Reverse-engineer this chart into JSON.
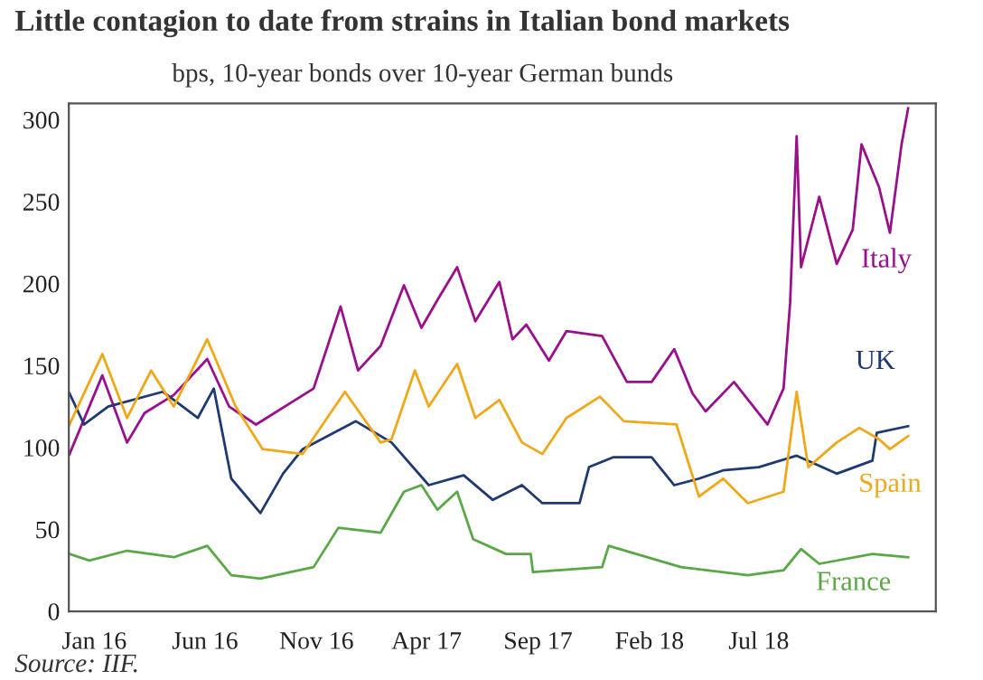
{
  "chart_data": {
    "type": "line",
    "title": "Little contagion to date from strains in Italian bond markets",
    "subtitle": "bps, 10-year bonds over 10-year German bunds",
    "annotations": [
      "Source: IIF."
    ],
    "xlim": [
      "2015-11-27",
      "2019-03-01"
    ],
    "ylim": [
      0,
      310
    ],
    "xticks": [
      {
        "value": "2016-01-01",
        "label": "Jan 16"
      },
      {
        "value": "2016-06-01",
        "label": "Jun 16"
      },
      {
        "value": "2016-11-01",
        "label": "Nov 16"
      },
      {
        "value": "2017-04-01",
        "label": "Apr 17"
      },
      {
        "value": "2017-09-01",
        "label": "Sep 17"
      },
      {
        "value": "2018-02-01",
        "label": "Feb 18"
      },
      {
        "value": "2018-07-01",
        "label": "Jul 18"
      }
    ],
    "yticks": [
      0,
      50,
      100,
      150,
      200,
      250,
      300
    ],
    "grid": false,
    "legend": false,
    "series": [
      {
        "name": "Italy",
        "color": "#990f8c",
        "x": [
          "2015-11-28",
          "2016-01-12",
          "2016-02-15",
          "2016-03-10",
          "2016-04-19",
          "2016-06-04",
          "2016-07-04",
          "2016-08-10",
          "2016-10-28",
          "2016-12-04",
          "2016-12-28",
          "2017-01-28",
          "2017-03-01",
          "2017-03-25",
          "2017-04-16",
          "2017-05-13",
          "2017-06-07",
          "2017-07-10",
          "2017-07-28",
          "2017-08-16",
          "2017-09-16",
          "2017-10-10",
          "2017-11-28",
          "2018-01-01",
          "2018-02-04",
          "2018-03-07",
          "2018-04-01",
          "2018-04-19",
          "2018-05-28",
          "2018-07-13",
          "2018-08-04",
          "2018-08-13",
          "2018-08-22",
          "2018-08-28",
          "2018-09-22",
          "2018-10-16",
          "2018-11-07",
          "2018-11-19",
          "2018-12-13",
          "2018-12-28",
          "2019-01-13",
          "2019-01-22"
        ],
        "values": [
          96,
          144,
          103,
          121,
          132,
          154,
          125,
          114,
          136,
          186,
          147,
          162,
          199,
          173,
          190,
          210,
          177,
          201,
          166,
          175,
          153,
          171,
          168,
          140,
          140,
          160,
          133,
          122,
          140,
          114,
          136,
          188,
          290,
          210,
          253,
          212,
          233,
          285,
          259,
          231,
          285,
          307
        ]
      },
      {
        "name": "UK",
        "color": "#1f3a73",
        "x": [
          "2015-11-28",
          "2015-12-18",
          "2016-01-20",
          "2016-04-04",
          "2016-05-22",
          "2016-06-13",
          "2016-07-07",
          "2016-08-16",
          "2016-09-16",
          "2016-10-13",
          "2016-12-25",
          "2017-02-12",
          "2017-04-04",
          "2017-05-22",
          "2017-07-01",
          "2017-08-10",
          "2017-09-07",
          "2017-10-28",
          "2017-11-10",
          "2017-12-13",
          "2018-02-04",
          "2018-03-07",
          "2018-04-10",
          "2018-05-13",
          "2018-07-01",
          "2018-08-22",
          "2018-10-16",
          "2018-12-04",
          "2018-12-10",
          "2019-01-22"
        ],
        "values": [
          133,
          114,
          125,
          134,
          118,
          136,
          81,
          60,
          84,
          99,
          116,
          103,
          77,
          83,
          68,
          77,
          66,
          66,
          88,
          94,
          94,
          77,
          81,
          86,
          88,
          95,
          84,
          92,
          109,
          113
        ]
      },
      {
        "name": "Spain",
        "color": "#f0a818",
        "x": [
          "2015-11-28",
          "2016-01-12",
          "2016-02-15",
          "2016-03-19",
          "2016-04-19",
          "2016-06-04",
          "2016-07-13",
          "2016-08-19",
          "2016-10-13",
          "2016-12-10",
          "2017-01-28",
          "2017-02-12",
          "2017-03-16",
          "2017-04-04",
          "2017-05-13",
          "2017-06-07",
          "2017-07-10",
          "2017-08-10",
          "2017-09-07",
          "2017-10-10",
          "2017-11-25",
          "2017-12-28",
          "2018-03-10",
          "2018-04-10",
          "2018-05-13",
          "2018-06-16",
          "2018-08-04",
          "2018-08-22",
          "2018-09-07",
          "2018-10-16",
          "2018-11-16",
          "2018-12-13",
          "2018-12-28",
          "2019-01-22"
        ],
        "values": [
          114,
          157,
          118,
          147,
          125,
          166,
          125,
          99,
          96,
          134,
          103,
          105,
          147,
          125,
          151,
          118,
          129,
          103,
          96,
          118,
          131,
          116,
          114,
          70,
          81,
          66,
          73,
          134,
          88,
          103,
          112,
          105,
          99,
          107
        ]
      },
      {
        "name": "France",
        "color": "#5aa845",
        "x": [
          "2015-11-28",
          "2015-12-25",
          "2016-02-15",
          "2016-04-19",
          "2016-06-04",
          "2016-07-07",
          "2016-08-16",
          "2016-10-28",
          "2016-12-01",
          "2017-01-28",
          "2017-03-01",
          "2017-03-25",
          "2017-04-16",
          "2017-05-13",
          "2017-06-04",
          "2017-07-19",
          "2017-08-22",
          "2017-08-25",
          "2017-11-28",
          "2017-12-07",
          "2018-03-16",
          "2018-06-16",
          "2018-08-04",
          "2018-08-28",
          "2018-09-22",
          "2018-12-04",
          "2019-01-22"
        ],
        "values": [
          35,
          31,
          37,
          33,
          40,
          22,
          20,
          27,
          51,
          48,
          73,
          77,
          62,
          73,
          44,
          35,
          35,
          24,
          27,
          40,
          27,
          22,
          25,
          38,
          29,
          35,
          33
        ]
      }
    ]
  }
}
